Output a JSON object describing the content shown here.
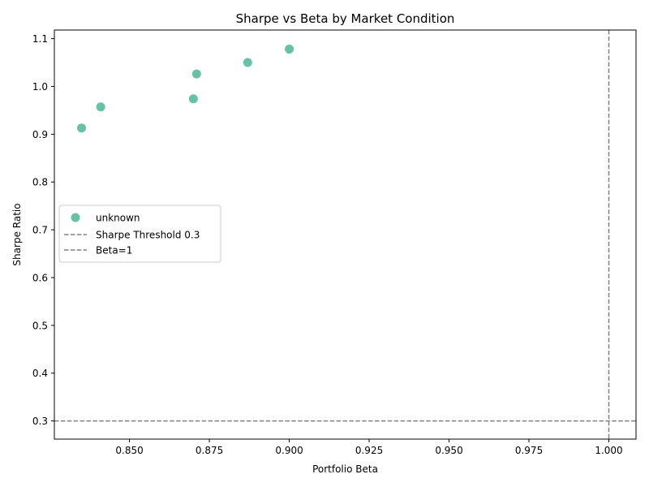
{
  "chart_data": {
    "type": "scatter",
    "title": "Sharpe vs Beta by Market Condition",
    "xlabel": "Portfolio Beta",
    "ylabel": "Sharpe Ratio",
    "xlim": [
      0.8265,
      1.0085
    ],
    "ylim": [
      0.262,
      1.118
    ],
    "xticks": [
      0.85,
      0.875,
      0.9,
      0.925,
      0.95,
      0.975,
      1.0
    ],
    "xtick_labels": [
      "0.850",
      "0.875",
      "0.900",
      "0.925",
      "0.950",
      "0.975",
      "1.000"
    ],
    "yticks": [
      0.3,
      0.4,
      0.5,
      0.6,
      0.7,
      0.8,
      0.9,
      1.0,
      1.1
    ],
    "ytick_labels": [
      "0.3",
      "0.4",
      "0.5",
      "0.6",
      "0.7",
      "0.8",
      "0.9",
      "1.0",
      "1.1"
    ],
    "grid": false,
    "legend_position": "center-left",
    "series": [
      {
        "name": "unknown",
        "color": "#66c2a5",
        "points": [
          {
            "x": 0.835,
            "y": 0.913
          },
          {
            "x": 0.841,
            "y": 0.957
          },
          {
            "x": 0.87,
            "y": 0.974
          },
          {
            "x": 0.871,
            "y": 1.026
          },
          {
            "x": 0.887,
            "y": 1.05
          },
          {
            "x": 0.9,
            "y": 1.078
          }
        ]
      }
    ],
    "reference_lines": [
      {
        "orientation": "horizontal",
        "value": 0.3,
        "label": "Sharpe Threshold 0.3",
        "color": "#808080",
        "style": "dashed"
      },
      {
        "orientation": "vertical",
        "value": 1.0,
        "label": "Beta=1",
        "color": "#808080",
        "style": "dashed"
      }
    ]
  }
}
